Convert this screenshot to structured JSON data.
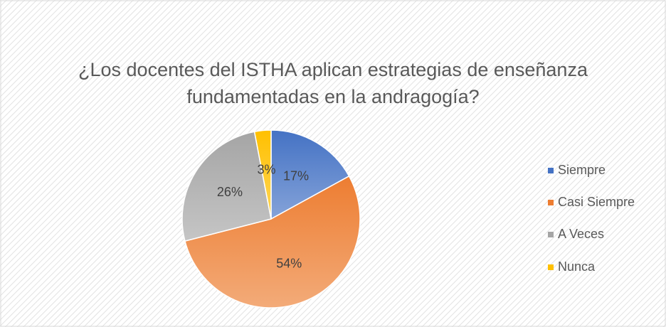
{
  "chart_data": {
    "type": "pie",
    "title": [
      "¿Los docentes del ISTHA aplican estrategias de enseñanza",
      "fundamentadas en la andragogía?"
    ],
    "categories": [
      "Siempre",
      "Casi Siempre",
      "A Veces",
      "Nunca"
    ],
    "values": [
      17,
      54,
      26,
      3
    ],
    "value_labels": [
      "17%",
      "54%",
      "26%",
      "3%"
    ],
    "colors": [
      "#4472c4",
      "#ed7d31",
      "#a5a5a5",
      "#ffc000"
    ],
    "legend": "right"
  }
}
